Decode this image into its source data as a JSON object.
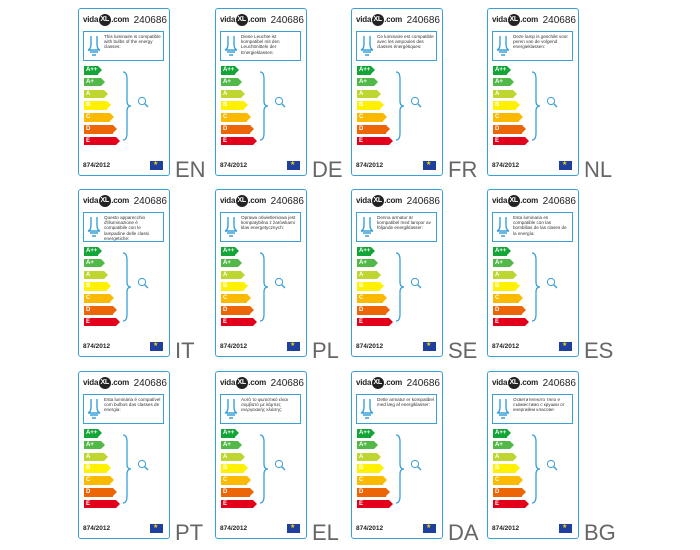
{
  "product_code": "240686",
  "logo_text": {
    "pre": "vida",
    "mid": "XL",
    "post": ".com"
  },
  "regulation": "874/2012",
  "energy_classes": [
    "A++",
    "A+",
    "A",
    "B",
    "C",
    "D",
    "E"
  ],
  "class_colors": [
    "#13a538",
    "#52b848",
    "#bfd530",
    "#fff100",
    "#fbb900",
    "#ec6608",
    "#e2001a"
  ],
  "labels": [
    {
      "lang": "EN",
      "text": "This luminaire is compatible with bulbs of the energy classes:"
    },
    {
      "lang": "DE",
      "text": "Diese Leuchte ist kompatibel mit den Leuchtmitteln der Energieklassen:"
    },
    {
      "lang": "FR",
      "text": "Ce luminaire est compatible avec les ampoules des classes énergétiques:"
    },
    {
      "lang": "NL",
      "text": "Deze lamp is geschikt voor peren van de volgend energieklassen:"
    },
    {
      "lang": "IT",
      "text": "Questo apparecchio d'illuminazione è compatibile con le lampadine delle classi energetiche:"
    },
    {
      "lang": "PL",
      "text": "Oprawa oświetleniowa jest kompatybilna z żarówkami klas energetycznych:"
    },
    {
      "lang": "SE",
      "text": "Denna armatur är kompatibel med lampor av följande energiklasser:"
    },
    {
      "lang": "ES",
      "text": "Esta luminaria es compatible con las bombillas de las clases de la energía:"
    },
    {
      "lang": "PT",
      "text": "Esta luminária é compatível com bulbos das classes de energia:"
    },
    {
      "lang": "EL",
      "text": "Αυτό το φωτιστικό είναι συμβατό με λάμπες ενεργειακής κλάσης:"
    },
    {
      "lang": "DA",
      "text": "Dette armatur er kompatibel med læg af energiklasser:"
    },
    {
      "lang": "BG",
      "text": "Осветителното тяло е съвместимо с крушки от енергийни класове:"
    }
  ]
}
